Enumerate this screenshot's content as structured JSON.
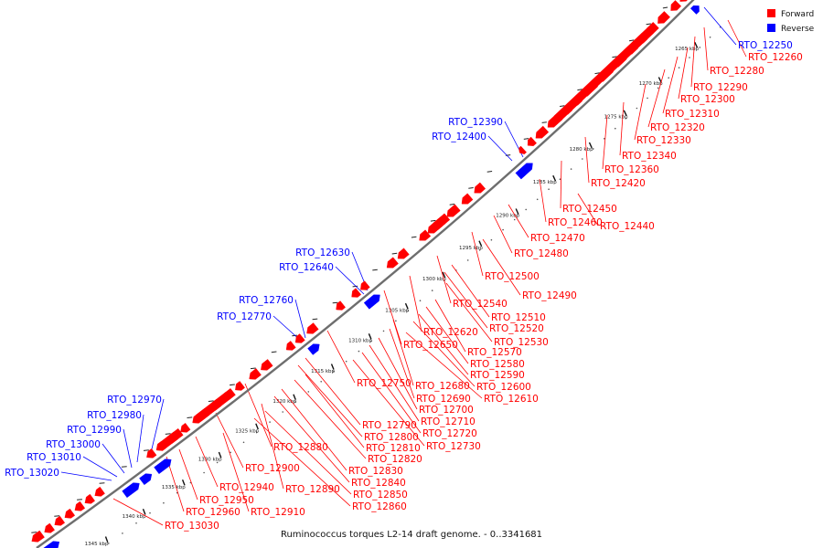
{
  "title": "Ruminococcus torques L2-14 draft genome. - 0..3341681",
  "legend": [
    {
      "label": "Forward",
      "color": "#ff0000"
    },
    {
      "label": "Reverse",
      "color": "#0000ff"
    }
  ],
  "colors": {
    "forward": "#ff0000",
    "reverse": "#0000ff",
    "backbone": "#6e6e6e"
  },
  "ticks": [
    "1265 kbp",
    "1270 kbp",
    "1275 kbp",
    "1280 kbp",
    "1285 kbp",
    "1290 kbp",
    "1295 kbp",
    "1300 kbp",
    "1305 kbp",
    "1310 kbp",
    "1315 kbp",
    "1320 kbp",
    "1325 kbp",
    "1330 kbp",
    "1335 kbp",
    "1340 kbp",
    "1345 kbp"
  ],
  "forward_labels": [
    "RTO_12260",
    "RTO_12280",
    "RTO_12290",
    "RTO_12300",
    "RTO_12310",
    "RTO_12320",
    "RTO_12330",
    "RTO_12340",
    "RTO_12360",
    "RTO_12420",
    "RTO_12450",
    "RTO_12460",
    "RTO_12440",
    "RTO_12470",
    "RTO_12480",
    "RTO_12500",
    "RTO_12490",
    "RTO_12540",
    "RTO_12510",
    "RTO_12520",
    "RTO_12620",
    "RTO_12530",
    "RTO_12650",
    "RTO_12570",
    "RTO_12580",
    "RTO_12590",
    "RTO_12750",
    "RTO_12680",
    "RTO_12600",
    "RTO_12690",
    "RTO_12610",
    "RTO_12700",
    "RTO_12710",
    "RTO_12790",
    "RTO_12720",
    "RTO_12800",
    "RTO_12730",
    "RTO_12880",
    "RTO_12810",
    "RTO_12820",
    "RTO_12900",
    "RTO_12830",
    "RTO_12840",
    "RTO_12940",
    "RTO_12890",
    "RTO_12850",
    "RTO_12950",
    "RTO_12860",
    "RTO_12960",
    "RTO_12910",
    "RTO_13030"
  ],
  "reverse_labels": [
    "RTO_12250",
    "RTO_12390",
    "RTO_12400",
    "RTO_12630",
    "RTO_12640",
    "RTO_12760",
    "RTO_12770",
    "RTO_12970",
    "RTO_12980",
    "RTO_12990",
    "RTO_13000",
    "RTO_13010",
    "RTO_13020"
  ]
}
